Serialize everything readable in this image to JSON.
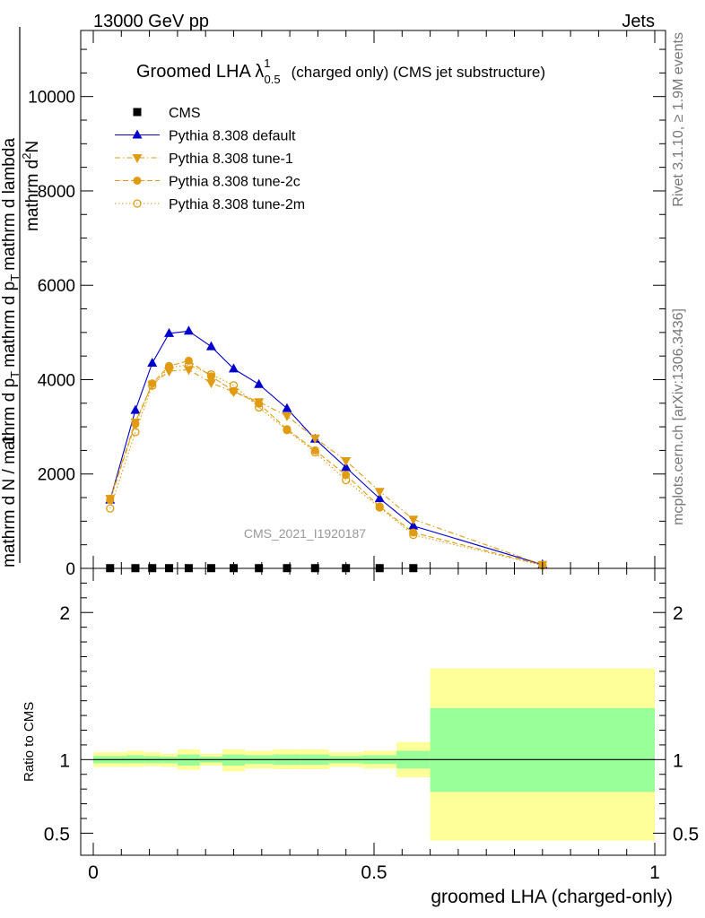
{
  "header": {
    "left": "13000 GeV pp",
    "right": "Jets"
  },
  "side_labels": {
    "top": "Rivet 3.1.10, ≥ 1.9M events",
    "bottom": "mcplots.cern.ch [arXiv:1306.3436]"
  },
  "main_title": {
    "prefix": "Groomed LHA ",
    "lambda": "λ",
    "sup": "1",
    "sub": "0.5",
    "suffix": "(charged only) (CMS jet substructure)"
  },
  "watermark": "CMS_2021_I1920187",
  "colors": {
    "default": "#0000cc",
    "tunes": "#e09b12",
    "band_inner": "#99ff99",
    "band_outer": "#ffff99"
  },
  "chart_data": [
    {
      "type": "line",
      "panel": "main",
      "xlim": [
        0,
        1
      ],
      "ylim": [
        0,
        11400
      ],
      "ylabel": {
        "numerator_1": "mathrm d",
        "numerator_sup": "2",
        "numerator_2": "N",
        "one": "1",
        "denominator": "mathrm d N / mathrm d p",
        "denominator_sub": "T",
        "denominator_2": "mathrm d p",
        "denominator_2_sub": "T",
        "denominator_3": "mathrm d lambda"
      },
      "yticks": [
        {
          "v": 0,
          "label": "0"
        },
        {
          "v": 2000,
          "label": "2000"
        },
        {
          "v": 4000,
          "label": "4000"
        },
        {
          "v": 6000,
          "label": "6000"
        },
        {
          "v": 8000,
          "label": "8000"
        },
        {
          "v": 10000,
          "label": "10000"
        }
      ],
      "series": [
        {
          "name": "CMS",
          "style": "data",
          "color": "#000000",
          "x": [
            0.03,
            0.075,
            0.105,
            0.135,
            0.17,
            0.21,
            0.25,
            0.295,
            0.345,
            0.395,
            0.45,
            0.51,
            0.57
          ],
          "values": [
            5,
            5,
            5,
            5,
            5,
            5,
            5,
            5,
            5,
            5,
            5,
            5,
            5
          ]
        },
        {
          "name": "Pythia 8.308 default",
          "style": "solid",
          "marker": "triangle-up",
          "color": "#0000cc",
          "x": [
            0.03,
            0.075,
            0.105,
            0.135,
            0.17,
            0.21,
            0.25,
            0.295,
            0.345,
            0.395,
            0.45,
            0.51,
            0.57,
            0.8
          ],
          "values": [
            1450,
            3350,
            4350,
            4980,
            5030,
            4700,
            4230,
            3900,
            3390,
            2740,
            2140,
            1480,
            900,
            80
          ]
        },
        {
          "name": "Pythia 8.308 tune-1",
          "style": "dashdot",
          "marker": "triangle-down",
          "color": "#e09b12",
          "x": [
            0.03,
            0.075,
            0.105,
            0.135,
            0.17,
            0.21,
            0.25,
            0.295,
            0.345,
            0.395,
            0.45,
            0.51,
            0.57,
            0.8
          ],
          "values": [
            1480,
            3100,
            3900,
            4180,
            4210,
            3930,
            3740,
            3530,
            3230,
            2760,
            2280,
            1630,
            1040,
            80
          ]
        },
        {
          "name": "Pythia 8.308 tune-2c",
          "style": "dashed",
          "marker": "circle",
          "color": "#e09b12",
          "x": [
            0.03,
            0.075,
            0.105,
            0.135,
            0.17,
            0.21,
            0.25,
            0.295,
            0.345,
            0.395,
            0.45,
            0.51,
            0.57,
            0.8
          ],
          "values": [
            1450,
            3060,
            3920,
            4290,
            4400,
            4070,
            3760,
            3490,
            2950,
            2500,
            1980,
            1310,
            760,
            70
          ]
        },
        {
          "name": "Pythia 8.308 tune-2m",
          "style": "dotted",
          "marker": "circle-open",
          "color": "#e09b12",
          "x": [
            0.03,
            0.075,
            0.105,
            0.135,
            0.17,
            0.21,
            0.25,
            0.295,
            0.345,
            0.395,
            0.45,
            0.51,
            0.57,
            0.8
          ],
          "values": [
            1270,
            2890,
            3870,
            4260,
            4310,
            4110,
            3880,
            3410,
            2930,
            2460,
            1870,
            1290,
            710,
            60
          ]
        }
      ]
    },
    {
      "type": "area",
      "panel": "ratio",
      "xlim": [
        0,
        1
      ],
      "ylim": [
        0.35,
        2.3
      ],
      "ylabel": "Ratio to CMS",
      "xlabel": "groomed LHA (charged-only)",
      "xticks": [
        {
          "v": 0,
          "label": "0"
        },
        {
          "v": 0.5,
          "label": "0.5"
        },
        {
          "v": 1,
          "label": "1"
        }
      ],
      "yticks": [
        {
          "v": 0.5,
          "label": "0.5"
        },
        {
          "v": 1,
          "label": "1"
        },
        {
          "v": 2,
          "label": "2"
        }
      ],
      "reference": 1,
      "bins": [
        {
          "lo": 0.0,
          "hi": 0.06,
          "outer": [
            0.95,
            1.05
          ],
          "inner": [
            0.975,
            1.025
          ]
        },
        {
          "lo": 0.06,
          "hi": 0.09,
          "outer": [
            0.95,
            1.06
          ],
          "inner": [
            0.975,
            1.03
          ]
        },
        {
          "lo": 0.09,
          "hi": 0.12,
          "outer": [
            0.955,
            1.05
          ],
          "inner": [
            0.975,
            1.025
          ]
        },
        {
          "lo": 0.12,
          "hi": 0.15,
          "outer": [
            0.95,
            1.04
          ],
          "inner": [
            0.975,
            1.02
          ]
        },
        {
          "lo": 0.15,
          "hi": 0.19,
          "outer": [
            0.93,
            1.07
          ],
          "inner": [
            0.96,
            1.035
          ]
        },
        {
          "lo": 0.19,
          "hi": 0.23,
          "outer": [
            0.96,
            1.04
          ],
          "inner": [
            0.98,
            1.02
          ]
        },
        {
          "lo": 0.23,
          "hi": 0.27,
          "outer": [
            0.92,
            1.07
          ],
          "inner": [
            0.96,
            1.035
          ]
        },
        {
          "lo": 0.27,
          "hi": 0.32,
          "outer": [
            0.94,
            1.06
          ],
          "inner": [
            0.97,
            1.03
          ]
        },
        {
          "lo": 0.32,
          "hi": 0.37,
          "outer": [
            0.935,
            1.07
          ],
          "inner": [
            0.965,
            1.035
          ]
        },
        {
          "lo": 0.37,
          "hi": 0.42,
          "outer": [
            0.935,
            1.07
          ],
          "inner": [
            0.965,
            1.035
          ]
        },
        {
          "lo": 0.42,
          "hi": 0.48,
          "outer": [
            0.95,
            1.05
          ],
          "inner": [
            0.975,
            1.025
          ]
        },
        {
          "lo": 0.48,
          "hi": 0.54,
          "outer": [
            0.94,
            1.06
          ],
          "inner": [
            0.97,
            1.03
          ]
        },
        {
          "lo": 0.54,
          "hi": 0.6,
          "outer": [
            0.88,
            1.12
          ],
          "inner": [
            0.94,
            1.06
          ]
        },
        {
          "lo": 0.6,
          "hi": 1.0,
          "outer": [
            0.45,
            1.62
          ],
          "inner": [
            0.78,
            1.35
          ]
        }
      ]
    }
  ]
}
